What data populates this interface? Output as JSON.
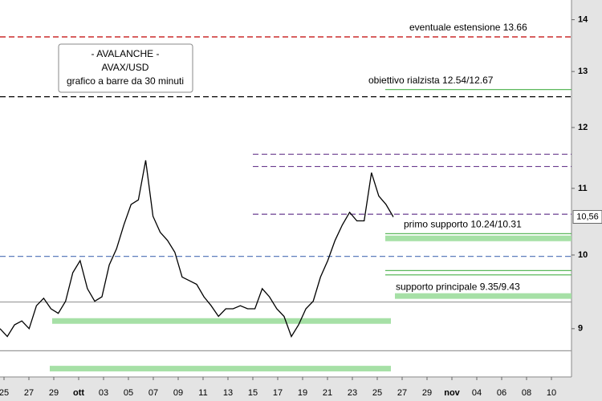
{
  "chart_data": {
    "type": "line",
    "log_scale": true,
    "note_box": [
      "- AVALANCHE -",
      "AVAX/USD",
      "grafico a barre da 30 minuti"
    ],
    "annotations": [
      {
        "text": "eventuale estensione 13.66",
        "value": 13.66
      },
      {
        "text": "obiettivo rialzista 12.54/12.67",
        "value": 12.67
      },
      {
        "text": "primo supporto 10.24/10.31",
        "value": 10.31
      },
      {
        "text": "supporto principale 9.35/9.43",
        "value": 9.43
      }
    ],
    "categories": [
      "25",
      "27",
      "29",
      "ott",
      "03",
      "05",
      "07",
      "09",
      "11",
      "13",
      "15",
      "17",
      "19",
      "21",
      "23",
      "25",
      "27",
      "29",
      "nov",
      "04",
      "06",
      "08",
      "10"
    ],
    "ylim": [
      8.4,
      14.4
    ],
    "yticks": [
      9,
      10,
      11,
      12,
      13,
      14
    ],
    "last": {
      "value": 10.56,
      "label": "10,56"
    },
    "price": {
      "color": "#000000",
      "values": [
        9.0,
        8.9,
        9.05,
        9.1,
        9.0,
        9.3,
        9.4,
        9.26,
        9.2,
        9.36,
        9.75,
        9.92,
        9.53,
        9.36,
        9.42,
        9.86,
        10.09,
        10.44,
        10.75,
        10.82,
        11.45,
        10.57,
        10.33,
        10.21,
        10.04,
        9.69,
        9.64,
        9.59,
        9.42,
        9.3,
        9.16,
        9.26,
        9.26,
        9.3,
        9.26,
        9.26,
        9.53,
        9.42,
        9.26,
        9.16,
        8.9,
        9.05,
        9.26,
        9.36,
        9.69,
        9.92,
        10.21,
        10.44,
        10.63,
        10.5,
        10.5,
        11.25,
        10.88,
        10.75,
        10.56
      ]
    },
    "levels": [
      {
        "value": 13.66,
        "color": "#c00000",
        "style": "dashed"
      },
      {
        "value": 12.54,
        "color": "#000000",
        "style": "dashed"
      },
      {
        "value": 12.67,
        "color": "#5cb85c",
        "style": "solid"
      },
      {
        "value": 11.55,
        "color": "#6a3d8f",
        "style": "dashed"
      },
      {
        "value": 11.35,
        "color": "#6a3d8f",
        "style": "dashed"
      },
      {
        "value": 10.6,
        "color": "#6a3d8f",
        "style": "dashed"
      },
      {
        "value": 10.31,
        "color": "#5cb85c",
        "style": "solid"
      },
      {
        "value": 10.24,
        "color": "#a6e0a6",
        "style": "band"
      },
      {
        "value": 9.98,
        "color": "#4a6fb5",
        "style": "dashed"
      },
      {
        "value": 9.78,
        "color": "#5cb85c",
        "style": "solid"
      },
      {
        "value": 9.72,
        "color": "#5cb85c",
        "style": "solid"
      },
      {
        "value": 9.43,
        "color": "#a6e0a6",
        "style": "band"
      },
      {
        "value": 9.35,
        "color": "#999999",
        "style": "solid"
      },
      {
        "value": 9.1,
        "color": "#a6e0a6",
        "style": "band"
      },
      {
        "value": 8.72,
        "color": "#999999",
        "style": "solid"
      },
      {
        "value": 8.5,
        "color": "#a6e0a6",
        "style": "band"
      }
    ]
  }
}
